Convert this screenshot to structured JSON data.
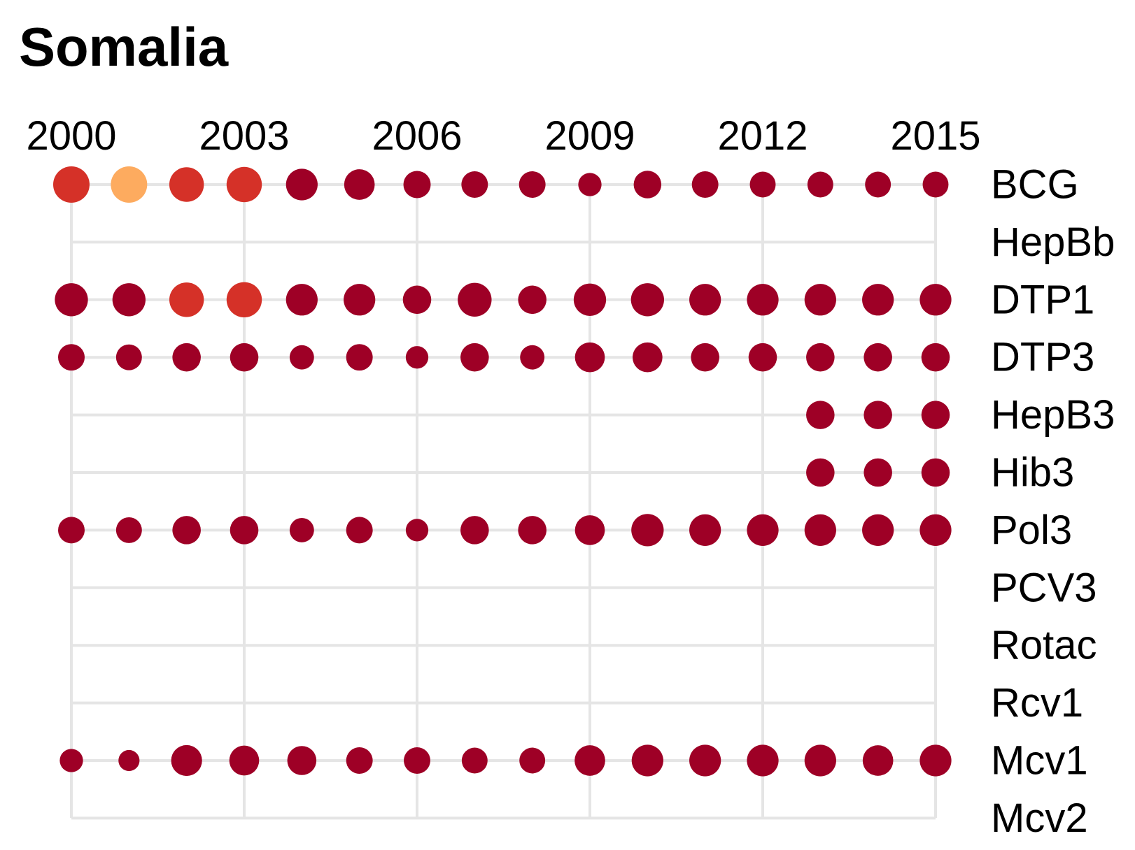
{
  "chart_data": {
    "type": "scatter",
    "title": "Somalia",
    "xlabel": "",
    "ylabel": "",
    "x_axis_position": "top",
    "y_axis_position": "right",
    "xlim": [
      2000,
      2015
    ],
    "x_ticks": [
      "2000",
      "2003",
      "2006",
      "2009",
      "2012",
      "2015"
    ],
    "years": [
      2000,
      2001,
      2002,
      2003,
      2004,
      2005,
      2006,
      2007,
      2008,
      2009,
      2010,
      2011,
      2012,
      2013,
      2014,
      2015
    ],
    "vaccines": [
      "BCG",
      "HepBb",
      "DTP1",
      "DTP3",
      "HepB3",
      "Hib3",
      "Pol3",
      "PCV3",
      "Rotac",
      "Rcv1",
      "Mcv1",
      "Mcv2"
    ],
    "grid": true,
    "legend": "none",
    "colors": {
      "dark_red": "#9e0026",
      "red": "#d53128",
      "orange": "#fdab5f",
      "grid": "#e5e5e5"
    },
    "size_encoding": "relative dot size per point (larger = larger value)",
    "points": [
      {
        "vaccine": "BCG",
        "year": 2000,
        "size": 1.0,
        "color": "red"
      },
      {
        "vaccine": "BCG",
        "year": 2001,
        "size": 1.0,
        "color": "orange"
      },
      {
        "vaccine": "BCG",
        "year": 2002,
        "size": 0.95,
        "color": "red"
      },
      {
        "vaccine": "BCG",
        "year": 2003,
        "size": 0.97,
        "color": "red"
      },
      {
        "vaccine": "BCG",
        "year": 2004,
        "size": 0.87,
        "color": "dark_red"
      },
      {
        "vaccine": "BCG",
        "year": 2005,
        "size": 0.84,
        "color": "dark_red"
      },
      {
        "vaccine": "BCG",
        "year": 2006,
        "size": 0.75,
        "color": "dark_red"
      },
      {
        "vaccine": "BCG",
        "year": 2007,
        "size": 0.73,
        "color": "dark_red"
      },
      {
        "vaccine": "BCG",
        "year": 2008,
        "size": 0.73,
        "color": "dark_red"
      },
      {
        "vaccine": "BCG",
        "year": 2009,
        "size": 0.64,
        "color": "dark_red"
      },
      {
        "vaccine": "BCG",
        "year": 2010,
        "size": 0.76,
        "color": "dark_red"
      },
      {
        "vaccine": "BCG",
        "year": 2011,
        "size": 0.73,
        "color": "dark_red"
      },
      {
        "vaccine": "BCG",
        "year": 2012,
        "size": 0.71,
        "color": "dark_red"
      },
      {
        "vaccine": "BCG",
        "year": 2013,
        "size": 0.71,
        "color": "dark_red"
      },
      {
        "vaccine": "BCG",
        "year": 2014,
        "size": 0.71,
        "color": "dark_red"
      },
      {
        "vaccine": "BCG",
        "year": 2015,
        "size": 0.71,
        "color": "dark_red"
      },
      {
        "vaccine": "DTP1",
        "year": 2000,
        "size": 0.91,
        "color": "dark_red"
      },
      {
        "vaccine": "DTP1",
        "year": 2001,
        "size": 0.91,
        "color": "dark_red"
      },
      {
        "vaccine": "DTP1",
        "year": 2002,
        "size": 0.95,
        "color": "red"
      },
      {
        "vaccine": "DTP1",
        "year": 2003,
        "size": 0.97,
        "color": "red"
      },
      {
        "vaccine": "DTP1",
        "year": 2004,
        "size": 0.87,
        "color": "dark_red"
      },
      {
        "vaccine": "DTP1",
        "year": 2005,
        "size": 0.87,
        "color": "dark_red"
      },
      {
        "vaccine": "DTP1",
        "year": 2006,
        "size": 0.78,
        "color": "dark_red"
      },
      {
        "vaccine": "DTP1",
        "year": 2007,
        "size": 0.93,
        "color": "dark_red"
      },
      {
        "vaccine": "DTP1",
        "year": 2008,
        "size": 0.78,
        "color": "dark_red"
      },
      {
        "vaccine": "DTP1",
        "year": 2009,
        "size": 0.89,
        "color": "dark_red"
      },
      {
        "vaccine": "DTP1",
        "year": 2010,
        "size": 0.91,
        "color": "dark_red"
      },
      {
        "vaccine": "DTP1",
        "year": 2011,
        "size": 0.87,
        "color": "dark_red"
      },
      {
        "vaccine": "DTP1",
        "year": 2012,
        "size": 0.87,
        "color": "dark_red"
      },
      {
        "vaccine": "DTP1",
        "year": 2013,
        "size": 0.87,
        "color": "dark_red"
      },
      {
        "vaccine": "DTP1",
        "year": 2014,
        "size": 0.87,
        "color": "dark_red"
      },
      {
        "vaccine": "DTP1",
        "year": 2015,
        "size": 0.87,
        "color": "dark_red"
      },
      {
        "vaccine": "DTP3",
        "year": 2000,
        "size": 0.73,
        "color": "dark_red"
      },
      {
        "vaccine": "DTP3",
        "year": 2001,
        "size": 0.71,
        "color": "dark_red"
      },
      {
        "vaccine": "DTP3",
        "year": 2002,
        "size": 0.78,
        "color": "dark_red"
      },
      {
        "vaccine": "DTP3",
        "year": 2003,
        "size": 0.78,
        "color": "dark_red"
      },
      {
        "vaccine": "DTP3",
        "year": 2004,
        "size": 0.67,
        "color": "dark_red"
      },
      {
        "vaccine": "DTP3",
        "year": 2005,
        "size": 0.73,
        "color": "dark_red"
      },
      {
        "vaccine": "DTP3",
        "year": 2006,
        "size": 0.62,
        "color": "dark_red"
      },
      {
        "vaccine": "DTP3",
        "year": 2007,
        "size": 0.78,
        "color": "dark_red"
      },
      {
        "vaccine": "DTP3",
        "year": 2008,
        "size": 0.67,
        "color": "dark_red"
      },
      {
        "vaccine": "DTP3",
        "year": 2009,
        "size": 0.82,
        "color": "dark_red"
      },
      {
        "vaccine": "DTP3",
        "year": 2010,
        "size": 0.82,
        "color": "dark_red"
      },
      {
        "vaccine": "DTP3",
        "year": 2011,
        "size": 0.78,
        "color": "dark_red"
      },
      {
        "vaccine": "DTP3",
        "year": 2012,
        "size": 0.78,
        "color": "dark_red"
      },
      {
        "vaccine": "DTP3",
        "year": 2013,
        "size": 0.78,
        "color": "dark_red"
      },
      {
        "vaccine": "DTP3",
        "year": 2014,
        "size": 0.78,
        "color": "dark_red"
      },
      {
        "vaccine": "DTP3",
        "year": 2015,
        "size": 0.78,
        "color": "dark_red"
      },
      {
        "vaccine": "HepB3",
        "year": 2013,
        "size": 0.78,
        "color": "dark_red"
      },
      {
        "vaccine": "HepB3",
        "year": 2014,
        "size": 0.78,
        "color": "dark_red"
      },
      {
        "vaccine": "HepB3",
        "year": 2015,
        "size": 0.78,
        "color": "dark_red"
      },
      {
        "vaccine": "Hib3",
        "year": 2013,
        "size": 0.78,
        "color": "dark_red"
      },
      {
        "vaccine": "Hib3",
        "year": 2014,
        "size": 0.78,
        "color": "dark_red"
      },
      {
        "vaccine": "Hib3",
        "year": 2015,
        "size": 0.78,
        "color": "dark_red"
      },
      {
        "vaccine": "Pol3",
        "year": 2000,
        "size": 0.73,
        "color": "dark_red"
      },
      {
        "vaccine": "Pol3",
        "year": 2001,
        "size": 0.71,
        "color": "dark_red"
      },
      {
        "vaccine": "Pol3",
        "year": 2002,
        "size": 0.78,
        "color": "dark_red"
      },
      {
        "vaccine": "Pol3",
        "year": 2003,
        "size": 0.78,
        "color": "dark_red"
      },
      {
        "vaccine": "Pol3",
        "year": 2004,
        "size": 0.67,
        "color": "dark_red"
      },
      {
        "vaccine": "Pol3",
        "year": 2005,
        "size": 0.73,
        "color": "dark_red"
      },
      {
        "vaccine": "Pol3",
        "year": 2006,
        "size": 0.62,
        "color": "dark_red"
      },
      {
        "vaccine": "Pol3",
        "year": 2007,
        "size": 0.78,
        "color": "dark_red"
      },
      {
        "vaccine": "Pol3",
        "year": 2008,
        "size": 0.78,
        "color": "dark_red"
      },
      {
        "vaccine": "Pol3",
        "year": 2009,
        "size": 0.82,
        "color": "dark_red"
      },
      {
        "vaccine": "Pol3",
        "year": 2010,
        "size": 0.89,
        "color": "dark_red"
      },
      {
        "vaccine": "Pol3",
        "year": 2011,
        "size": 0.87,
        "color": "dark_red"
      },
      {
        "vaccine": "Pol3",
        "year": 2012,
        "size": 0.87,
        "color": "dark_red"
      },
      {
        "vaccine": "Pol3",
        "year": 2013,
        "size": 0.87,
        "color": "dark_red"
      },
      {
        "vaccine": "Pol3",
        "year": 2014,
        "size": 0.87,
        "color": "dark_red"
      },
      {
        "vaccine": "Pol3",
        "year": 2015,
        "size": 0.87,
        "color": "dark_red"
      },
      {
        "vaccine": "Mcv1",
        "year": 2000,
        "size": 0.64,
        "color": "dark_red"
      },
      {
        "vaccine": "Mcv1",
        "year": 2001,
        "size": 0.58,
        "color": "dark_red"
      },
      {
        "vaccine": "Mcv1",
        "year": 2002,
        "size": 0.85,
        "color": "dark_red"
      },
      {
        "vaccine": "Mcv1",
        "year": 2003,
        "size": 0.82,
        "color": "dark_red"
      },
      {
        "vaccine": "Mcv1",
        "year": 2004,
        "size": 0.8,
        "color": "dark_red"
      },
      {
        "vaccine": "Mcv1",
        "year": 2005,
        "size": 0.73,
        "color": "dark_red"
      },
      {
        "vaccine": "Mcv1",
        "year": 2006,
        "size": 0.73,
        "color": "dark_red"
      },
      {
        "vaccine": "Mcv1",
        "year": 2007,
        "size": 0.71,
        "color": "dark_red"
      },
      {
        "vaccine": "Mcv1",
        "year": 2008,
        "size": 0.71,
        "color": "dark_red"
      },
      {
        "vaccine": "Mcv1",
        "year": 2009,
        "size": 0.84,
        "color": "dark_red"
      },
      {
        "vaccine": "Mcv1",
        "year": 2010,
        "size": 0.87,
        "color": "dark_red"
      },
      {
        "vaccine": "Mcv1",
        "year": 2011,
        "size": 0.87,
        "color": "dark_red"
      },
      {
        "vaccine": "Mcv1",
        "year": 2012,
        "size": 0.87,
        "color": "dark_red"
      },
      {
        "vaccine": "Mcv1",
        "year": 2013,
        "size": 0.87,
        "color": "dark_red"
      },
      {
        "vaccine": "Mcv1",
        "year": 2014,
        "size": 0.84,
        "color": "dark_red"
      },
      {
        "vaccine": "Mcv1",
        "year": 2015,
        "size": 0.87,
        "color": "dark_red"
      }
    ]
  }
}
